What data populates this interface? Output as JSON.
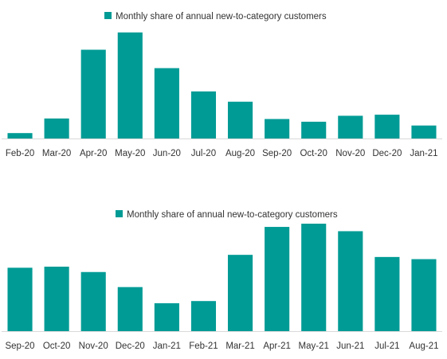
{
  "colors": {
    "bar": "#009B95",
    "axis": "#D9D9D9",
    "text": "#333333"
  },
  "chart_data": [
    {
      "type": "bar",
      "legend_position": "top-center",
      "series": [
        {
          "name": "Monthly share of annual new-to-category customers",
          "values": [
            0.5,
            1.85,
            8.2,
            9.8,
            6.5,
            4.35,
            3.4,
            1.8,
            1.55,
            2.1,
            2.2,
            1.2
          ]
        }
      ],
      "categories": [
        "Feb-20",
        "Mar-20",
        "Apr-20",
        "May-20",
        "Jun-20",
        "Jul-20",
        "Aug-20",
        "Sep-20",
        "Oct-20",
        "Nov-20",
        "Dec-20",
        "Jan-21"
      ],
      "ylim": [
        0,
        10
      ],
      "grid": false
    },
    {
      "type": "bar",
      "legend_position": "top-center",
      "series": [
        {
          "name": "Monthly share of annual new-to-category customers",
          "values": [
            5.9,
            6.0,
            5.5,
            4.1,
            2.6,
            2.8,
            7.1,
            9.7,
            10.0,
            9.3,
            6.9,
            6.7
          ]
        }
      ],
      "categories": [
        "Sep-20",
        "Oct-20",
        "Nov-20",
        "Dec-20",
        "Jan-21",
        "Feb-21",
        "Mar-21",
        "Apr-21",
        "May-21",
        "Jun-21",
        "Jul-21",
        "Aug-21"
      ],
      "ylim": [
        0,
        10
      ],
      "grid": false
    }
  ]
}
